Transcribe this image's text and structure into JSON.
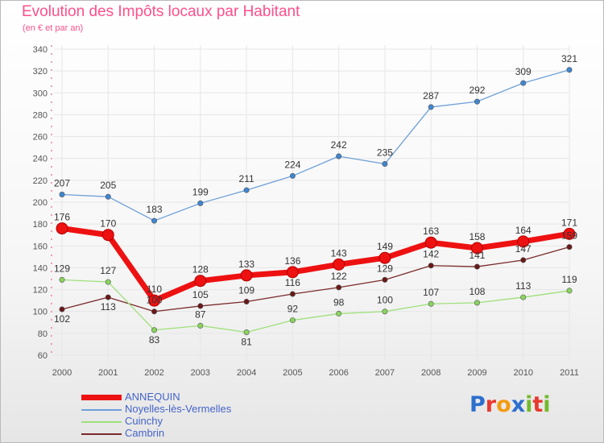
{
  "title": "Evolution des Impôts locaux par Habitant",
  "subtitle": "(en € et par an)",
  "brand": {
    "text": "Proxiti",
    "letter_colors": [
      "#2e6fce",
      "#e8392e",
      "#f39c12",
      "#2e6fce",
      "#74b92b",
      "#e8392e",
      "#74b92b"
    ]
  },
  "colors": {
    "tick_text": "#555555",
    "grid": "#e6e6e6",
    "axis": "#cccccc"
  },
  "chart_data": {
    "type": "line",
    "title": "Evolution des Impôts locaux par Habitant",
    "subtitle": "(en € et par an)",
    "xlabel": "",
    "ylabel": "",
    "ylim": [
      60,
      340
    ],
    "yticks": [
      60,
      80,
      100,
      120,
      140,
      160,
      180,
      200,
      220,
      240,
      260,
      280,
      300,
      320,
      340
    ],
    "x": [
      "2000",
      "2001",
      "2002",
      "2003",
      "2004",
      "2005",
      "2006",
      "2007",
      "2008",
      "2009",
      "2010",
      "2011"
    ],
    "grid": true,
    "legend_position": "bottom-left",
    "series": [
      {
        "name": "ANNEQUIN",
        "values": [
          176,
          170,
          110,
          128,
          133,
          136,
          143,
          149,
          163,
          158,
          164,
          171
        ],
        "color": "#ee1111",
        "width": 7,
        "marker": "#ee1111",
        "labels": [
          "176",
          "170",
          "110",
          "128",
          "133",
          "136",
          "143",
          "149",
          "163",
          "158",
          "164",
          "171"
        ]
      },
      {
        "name": "Noyelles-lès-Vermelles",
        "values": [
          207,
          205,
          183,
          199,
          211,
          224,
          242,
          235,
          287,
          292,
          309,
          321
        ],
        "color": "#6ea0d8",
        "width": 1.3,
        "marker": "#3f86d0",
        "labels": [
          "207",
          "205",
          "183",
          "199",
          "211",
          "224",
          "242",
          "235",
          "287",
          "292",
          "309",
          "321"
        ]
      },
      {
        "name": "Cuinchy",
        "values": [
          129,
          127,
          83,
          87,
          81,
          92,
          98,
          100,
          107,
          108,
          113,
          119
        ],
        "color": "#9ee07a",
        "width": 1.3,
        "marker": "#8ad45e",
        "labels": [
          "129",
          "127",
          "83",
          "87",
          "81",
          "92",
          "98",
          "100",
          "107",
          "108",
          "113",
          "119"
        ]
      },
      {
        "name": "Cambrin",
        "values": [
          102,
          113,
          100,
          105,
          109,
          116,
          122,
          129,
          142,
          141,
          147,
          159
        ],
        "color": "#7a2a2a",
        "width": 1.3,
        "marker": "#6a1818",
        "labels": [
          "102",
          "113",
          "100",
          "105",
          "109",
          "116",
          "122",
          "129",
          "142",
          "141",
          "147",
          "159"
        ]
      }
    ]
  }
}
